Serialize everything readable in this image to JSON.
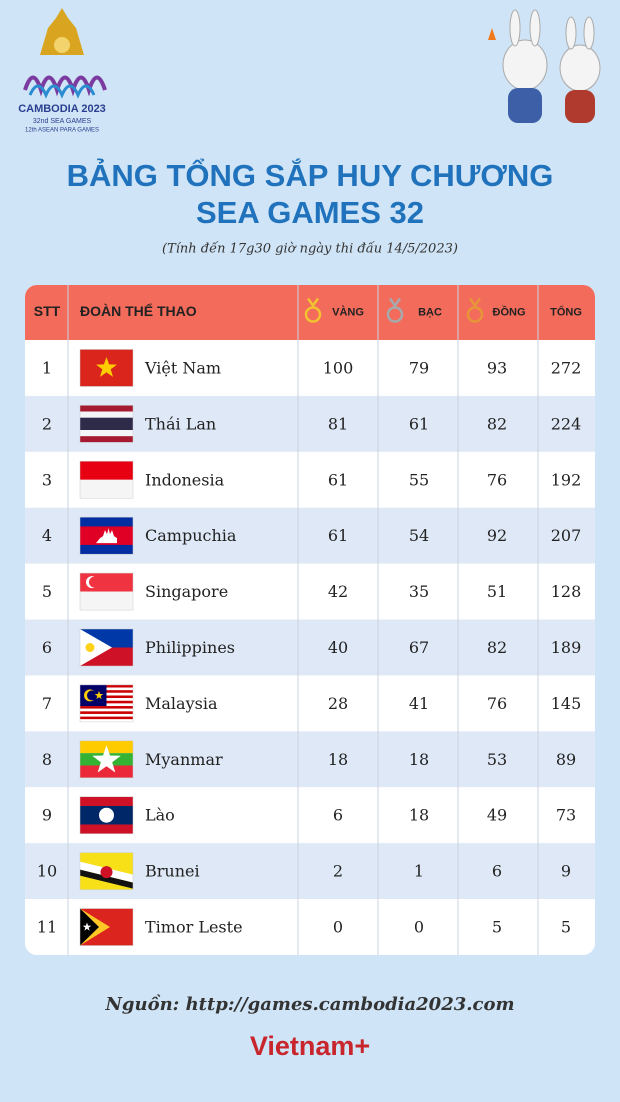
{
  "logo": {
    "title": "CAMBODIA 2023",
    "line1": "32nd SEA GAMES",
    "line2": "12th ASEAN PARA GAMES"
  },
  "header": {
    "title_line1": "BẢNG TỔNG SẮP HUY CHƯƠNG",
    "title_line2": "SEA GAMES 32",
    "subtitle": "(Tính đến 17g30 giờ ngày thi đấu 14/5/2023)"
  },
  "table": {
    "columns": [
      "STT",
      "ĐOÀN THỂ THAO",
      "VÀNG",
      "BẠC",
      "ĐỒNG",
      "TỔNG"
    ],
    "rows": [
      [
        1,
        "Việt Nam",
        100,
        79,
        93,
        272
      ],
      [
        2,
        "Thái Lan",
        81,
        61,
        82,
        224
      ],
      [
        3,
        "Indonesia",
        61,
        55,
        76,
        192
      ],
      [
        4,
        "Campuchia",
        61,
        54,
        92,
        207
      ],
      [
        5,
        "Singapore",
        42,
        35,
        51,
        128
      ],
      [
        6,
        "Philippines",
        40,
        67,
        82,
        189
      ],
      [
        7,
        "Malaysia",
        28,
        41,
        76,
        145
      ],
      [
        8,
        "Myanmar",
        18,
        18,
        53,
        89
      ],
      [
        9,
        "Lào",
        6,
        18,
        49,
        73
      ],
      [
        10,
        "Brunei",
        2,
        1,
        6,
        9
      ],
      [
        11,
        "Timor Leste",
        0,
        0,
        5,
        5
      ]
    ]
  },
  "footer": {
    "source": "Nguồn: http://games.cambodia2023.com",
    "brand": "Vietnam+"
  }
}
